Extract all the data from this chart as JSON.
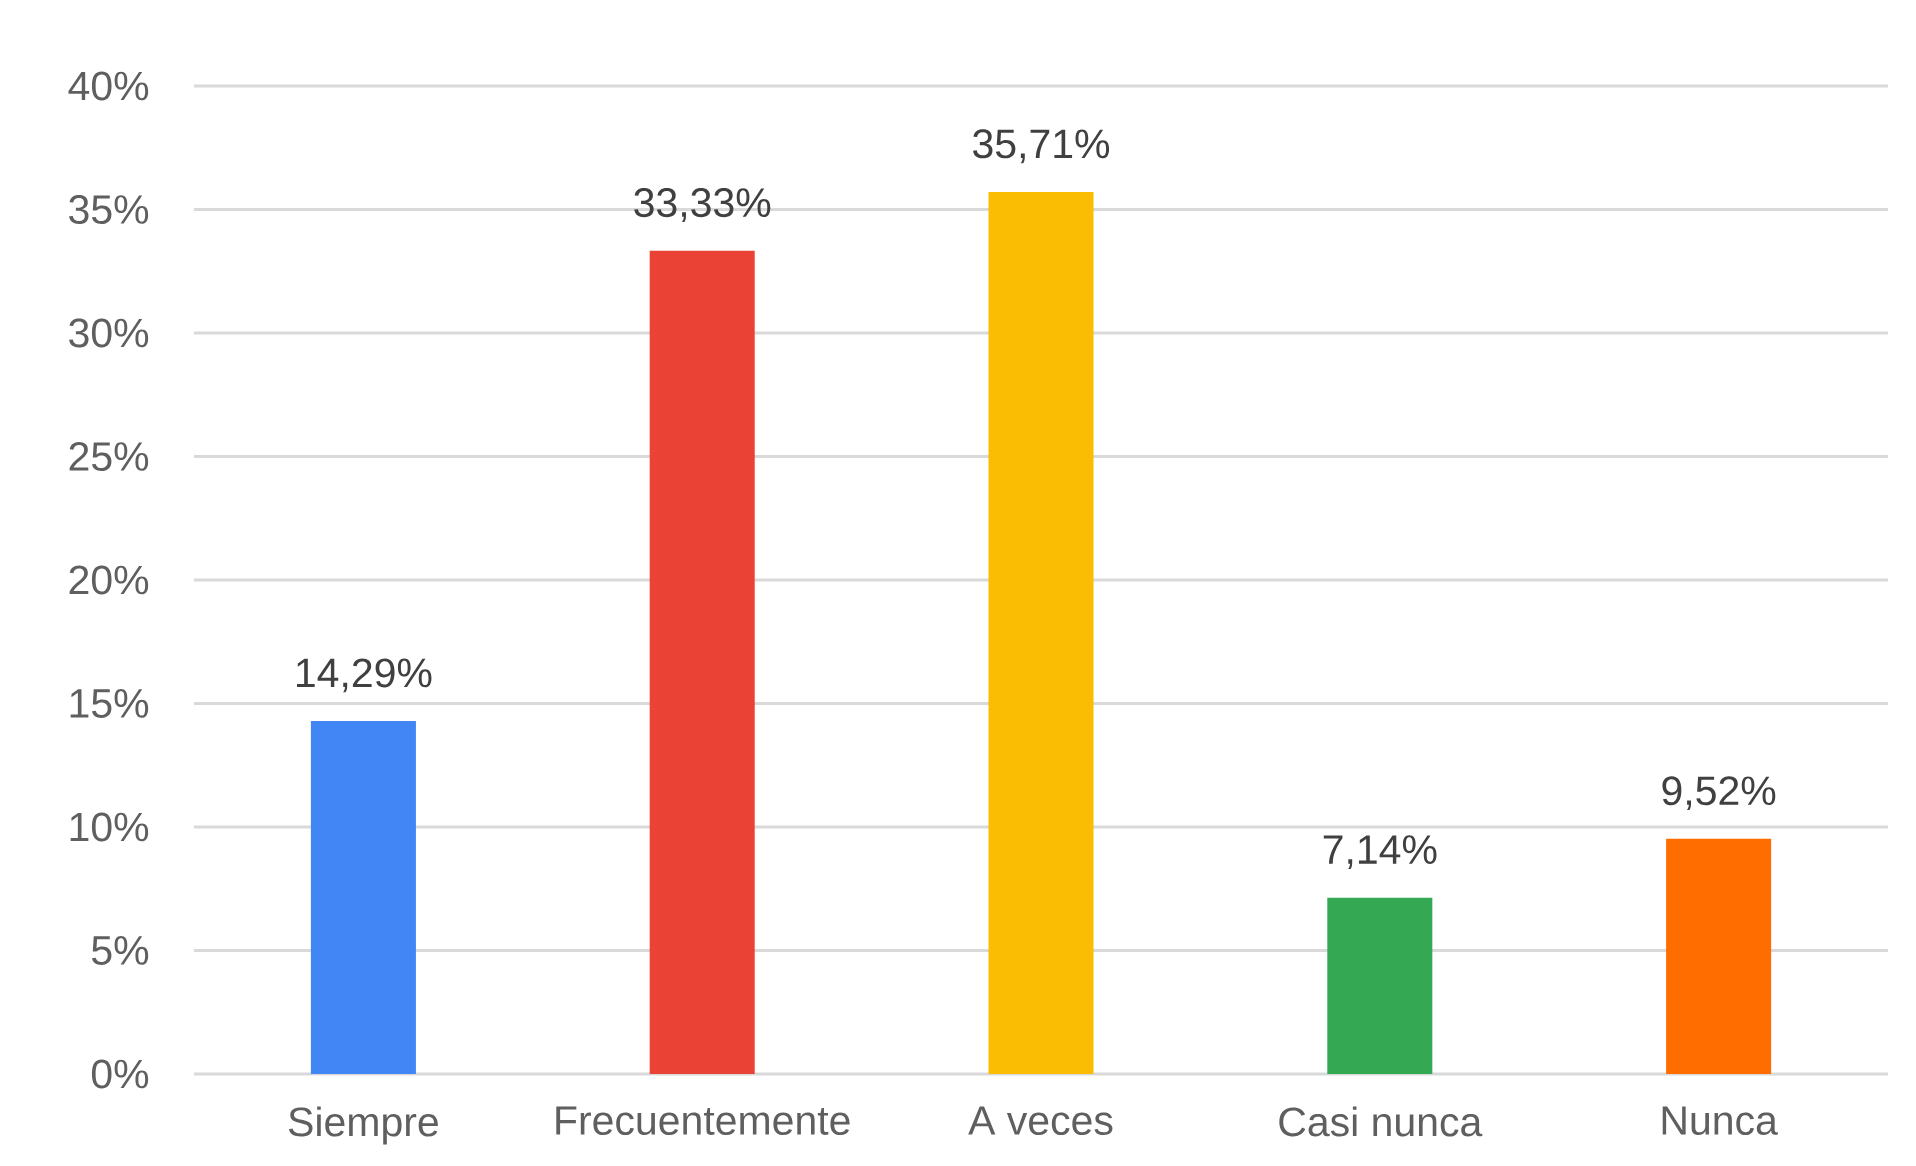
{
  "chart_data": {
    "type": "bar",
    "categories": [
      "Siempre",
      "Frecuentemente",
      "A veces",
      "Casi nunca",
      "Nunca"
    ],
    "values": [
      14.29,
      33.33,
      35.71,
      7.14,
      9.52
    ],
    "colors": [
      "#4285f4",
      "#ea4335",
      "#fbbc04",
      "#34a853",
      "#ff6d01"
    ],
    "value_labels": [
      "14,29%",
      "33,33%",
      "35,71%",
      "7,14%",
      "9,52%"
    ],
    "ylim": [
      0,
      40
    ],
    "yticks": [
      {
        "value": 0,
        "label": "0%"
      },
      {
        "value": 5,
        "label": "5%"
      },
      {
        "value": 10,
        "label": "10%"
      },
      {
        "value": 15,
        "label": "15%"
      },
      {
        "value": 20,
        "label": "20%"
      },
      {
        "value": 25,
        "label": "25%"
      },
      {
        "value": 30,
        "label": "30%"
      },
      {
        "value": 35,
        "label": "35%"
      },
      {
        "value": 40,
        "label": "40%"
      }
    ],
    "grid": "y"
  }
}
